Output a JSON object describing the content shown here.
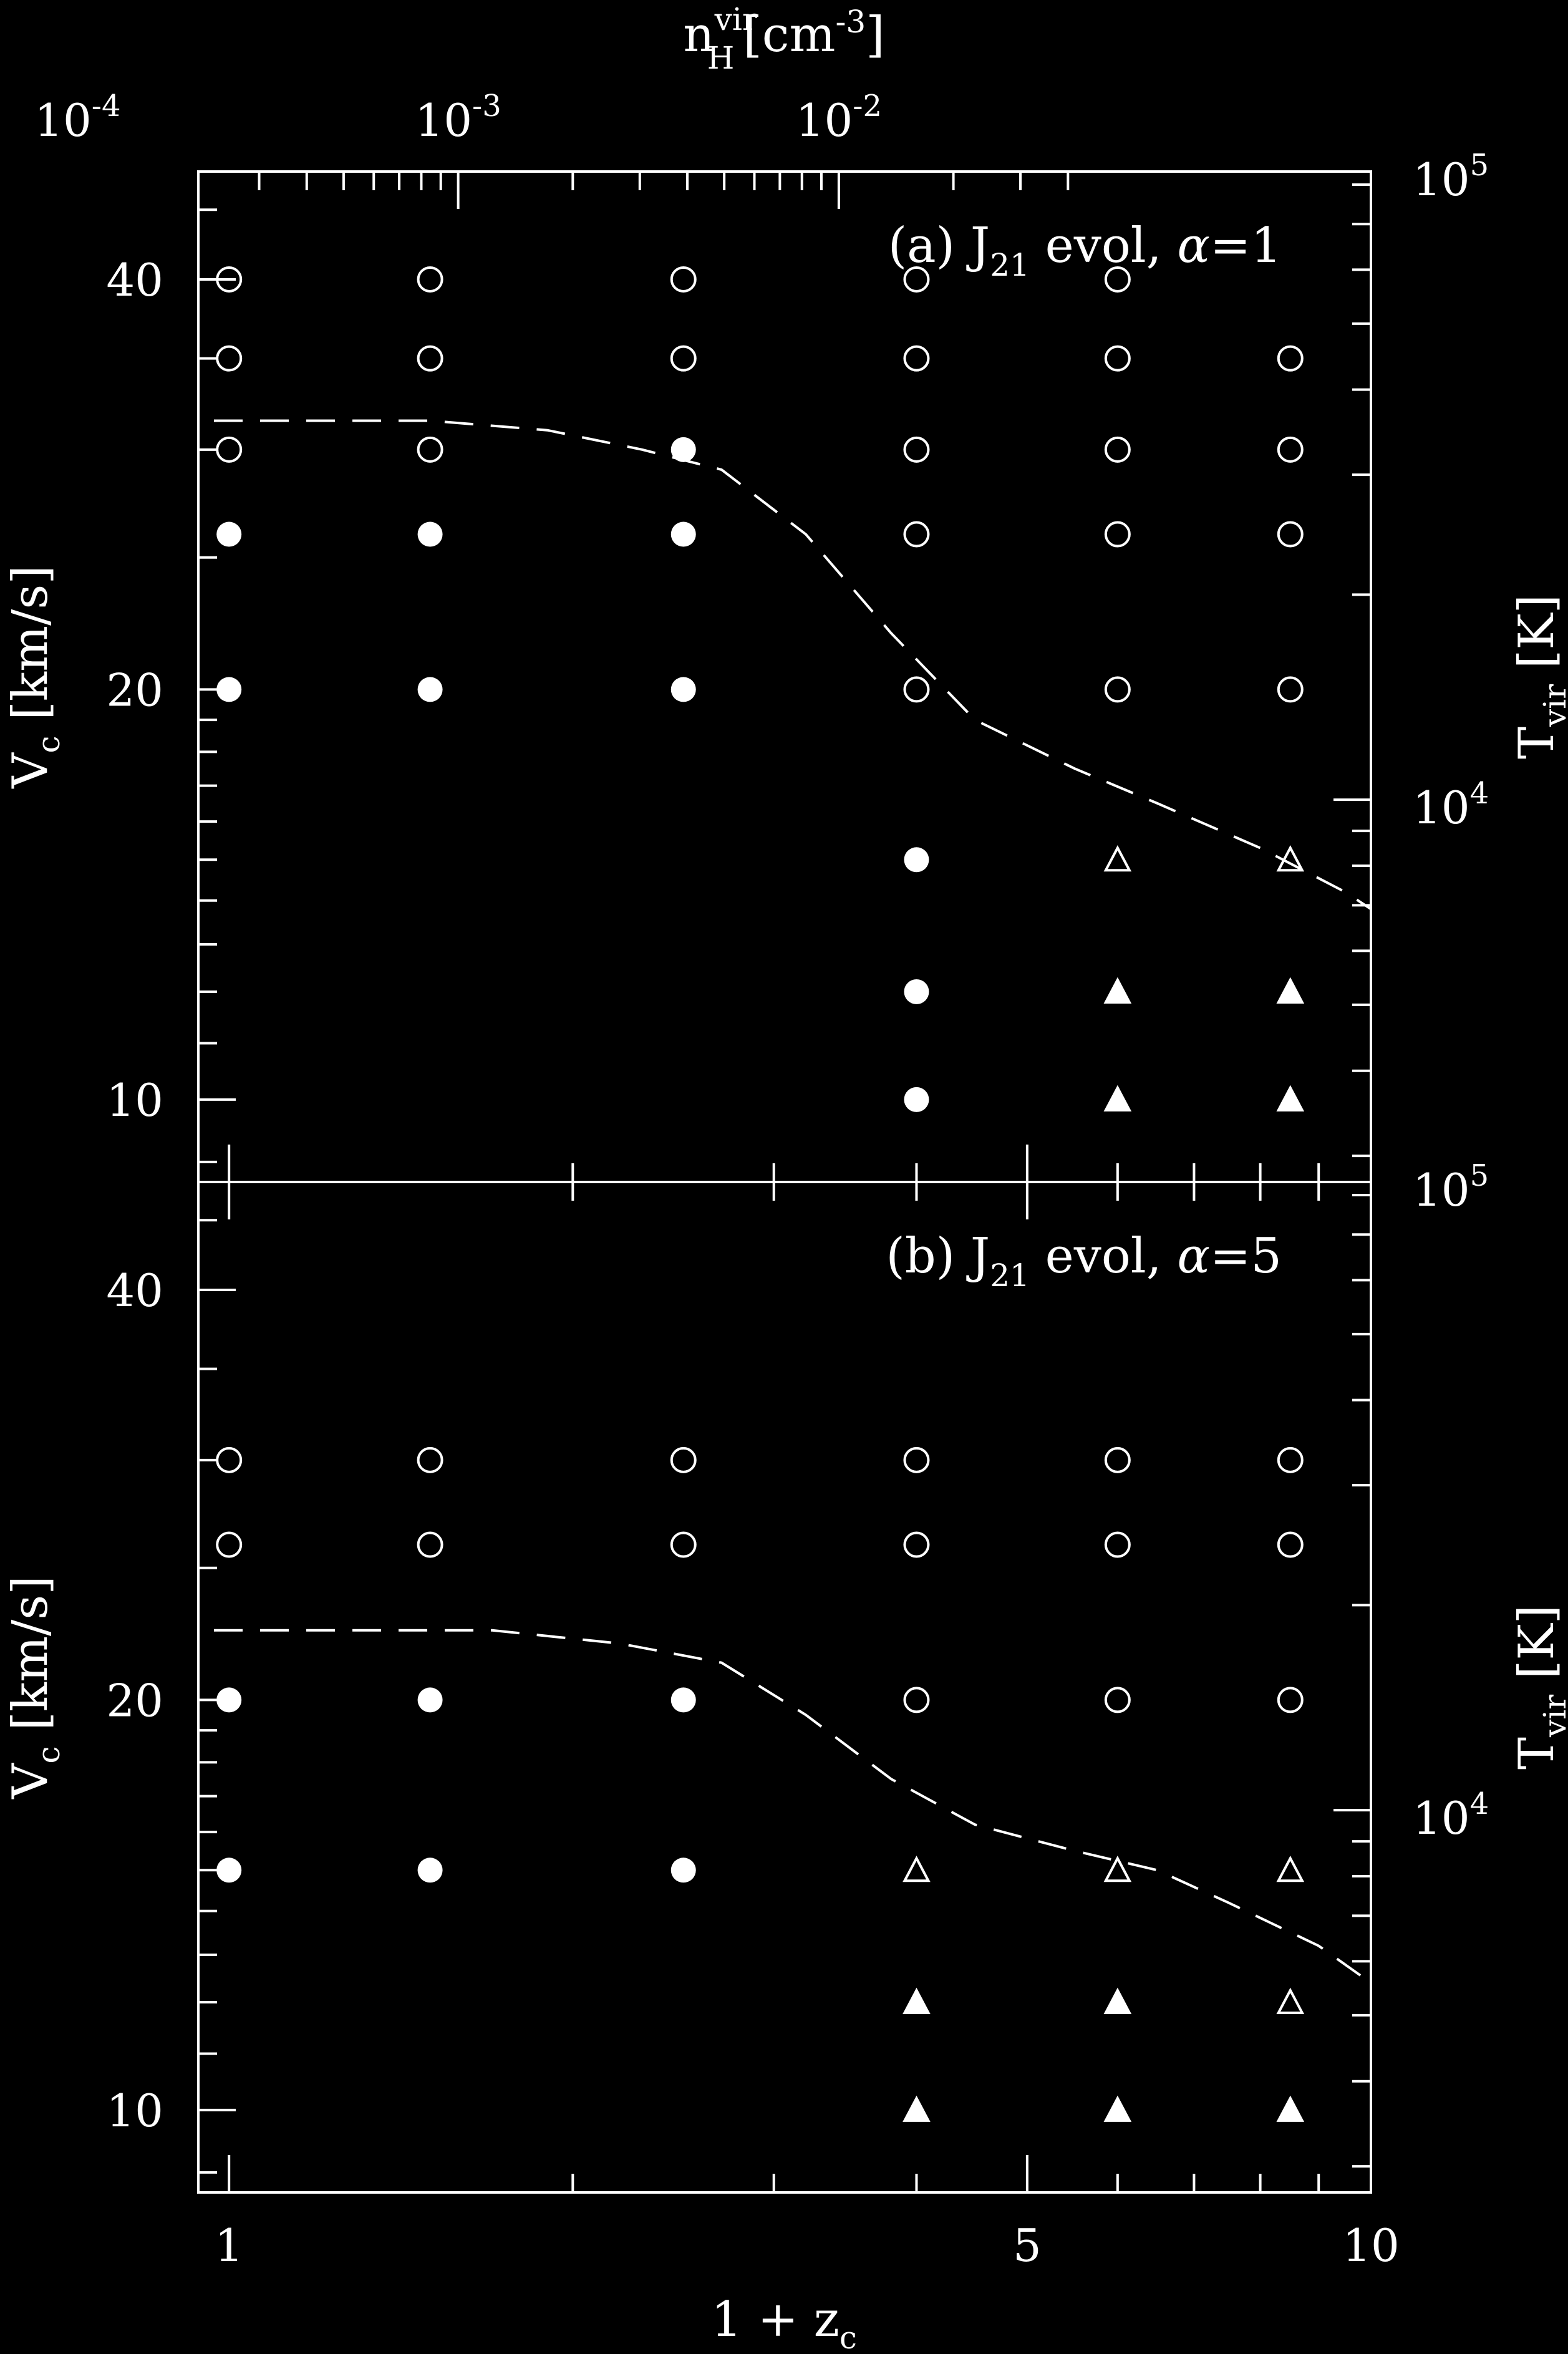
{
  "chart_data": [
    {
      "panel": "a",
      "type": "scatter",
      "annotation": {
        "prefix": "(a) J",
        "subscript": "21",
        "middle": " evol, ",
        "alpha": "α",
        "suffix": "=1"
      },
      "xlabel": {
        "main": "1 + z",
        "sub": "c"
      },
      "ylabel": {
        "main": "V",
        "sub": "c",
        "unit": " [km/s]"
      },
      "y2label": {
        "main": "T",
        "sub": "vir",
        "unit": " [K]"
      },
      "top_axis_label": {
        "main": "n",
        "sub": "H",
        "sup": "vir",
        "unit_a": "[cm",
        "unit_sup": "-3",
        "unit_b": "]"
      },
      "top_ticks": [
        {
          "base": "10",
          "exp": "-4",
          "value": 0.0001
        },
        {
          "base": "10",
          "exp": "-3",
          "value": 0.001
        },
        {
          "base": "10",
          "exp": "-2",
          "value": 0.01
        }
      ],
      "xscale": "log",
      "xlim": [
        0.94,
        10
      ],
      "yscale": "log",
      "ylim": [
        8.7,
        48
      ],
      "yticks": [
        "10",
        "20",
        "40"
      ],
      "y2ticks": [
        {
          "base": "10",
          "exp": "4"
        },
        {
          "base": "10",
          "exp": "5"
        }
      ],
      "series": [
        {
          "marker": "open-circle",
          "points": [
            [
              1,
              40
            ],
            [
              1.5,
              40
            ],
            [
              2.5,
              40
            ],
            [
              4,
              40
            ],
            [
              6,
              40
            ],
            [
              1,
              35
            ],
            [
              1.5,
              35
            ],
            [
              2.5,
              35
            ],
            [
              4,
              35
            ],
            [
              6,
              35
            ],
            [
              8.5,
              35
            ],
            [
              1,
              30
            ],
            [
              1.5,
              30
            ],
            [
              4,
              30
            ],
            [
              6,
              30
            ],
            [
              8.5,
              30
            ],
            [
              4,
              26
            ],
            [
              6,
              26
            ],
            [
              8.5,
              26
            ],
            [
              4,
              20
            ],
            [
              6,
              20
            ],
            [
              8.5,
              20
            ]
          ]
        },
        {
          "marker": "filled-circle",
          "points": [
            [
              2.5,
              30
            ],
            [
              1,
              26
            ],
            [
              1.5,
              26
            ],
            [
              2.5,
              26
            ],
            [
              1,
              20
            ],
            [
              1.5,
              20
            ],
            [
              2.5,
              20
            ],
            [
              4,
              15
            ],
            [
              4,
              12
            ],
            [
              4,
              10
            ]
          ]
        },
        {
          "marker": "open-triangle",
          "points": [
            [
              6,
              15
            ],
            [
              8.5,
              15
            ]
          ]
        },
        {
          "marker": "filled-triangle",
          "points": [
            [
              6,
              12
            ],
            [
              8.5,
              12
            ],
            [
              6,
              10
            ],
            [
              8.5,
              10
            ]
          ]
        }
      ],
      "dashed_curve": [
        [
          0.97,
          31.5
        ],
        [
          1.2,
          31.5
        ],
        [
          1.5,
          31.5
        ],
        [
          1.9,
          31
        ],
        [
          2.3,
          30
        ],
        [
          2.7,
          29
        ],
        [
          3.2,
          26
        ],
        [
          3.8,
          22
        ],
        [
          4.5,
          19
        ],
        [
          5.5,
          17.5
        ],
        [
          6.5,
          16.5
        ],
        [
          8,
          15.3
        ],
        [
          9.5,
          14.2
        ],
        [
          10,
          13.8
        ]
      ]
    },
    {
      "panel": "b",
      "type": "scatter",
      "annotation": {
        "prefix": "(b) J",
        "subscript": "21",
        "middle": " evol, ",
        "alpha": "α",
        "suffix": "=5"
      },
      "xlabel": {
        "main": "1 + z",
        "sub": "c"
      },
      "ylabel": {
        "main": "V",
        "sub": "c",
        "unit": " [km/s]"
      },
      "y2label": {
        "main": "T",
        "sub": "vir",
        "unit": " [K]"
      },
      "xscale": "log",
      "xlim": [
        0.94,
        10
      ],
      "xticks": [
        "1",
        "5",
        "10"
      ],
      "yscale": "log",
      "ylim": [
        8.7,
        48
      ],
      "yticks": [
        "10",
        "20",
        "40"
      ],
      "y2ticks": [
        {
          "base": "10",
          "exp": "4"
        },
        {
          "base": "10",
          "exp": "5"
        }
      ],
      "series": [
        {
          "marker": "open-circle",
          "points": [
            [
              1,
              30
            ],
            [
              1.5,
              30
            ],
            [
              2.5,
              30
            ],
            [
              4,
              30
            ],
            [
              6,
              30
            ],
            [
              8.5,
              30
            ],
            [
              1,
              26
            ],
            [
              1.5,
              26
            ],
            [
              2.5,
              26
            ],
            [
              4,
              26
            ],
            [
              6,
              26
            ],
            [
              8.5,
              26
            ],
            [
              4,
              20
            ],
            [
              6,
              20
            ],
            [
              8.5,
              20
            ]
          ]
        },
        {
          "marker": "filled-circle",
          "points": [
            [
              1,
              20
            ],
            [
              1.5,
              20
            ],
            [
              2.5,
              20
            ],
            [
              1,
              15
            ],
            [
              1.5,
              15
            ],
            [
              2.5,
              15
            ]
          ]
        },
        {
          "marker": "open-triangle",
          "points": [
            [
              4,
              15
            ],
            [
              6,
              15
            ],
            [
              8.5,
              15
            ],
            [
              8.5,
              12
            ]
          ]
        },
        {
          "marker": "filled-triangle",
          "points": [
            [
              4,
              12
            ],
            [
              6,
              12
            ],
            [
              4,
              10
            ],
            [
              6,
              10
            ],
            [
              8.5,
              10
            ]
          ]
        }
      ],
      "dashed_curve": [
        [
          0.97,
          22.5
        ],
        [
          1.3,
          22.5
        ],
        [
          1.7,
          22.5
        ],
        [
          2.2,
          22
        ],
        [
          2.7,
          21.3
        ],
        [
          3.2,
          19.5
        ],
        [
          3.8,
          17.5
        ],
        [
          4.5,
          16.2
        ],
        [
          5.5,
          15.5
        ],
        [
          6.5,
          15
        ],
        [
          7.5,
          14.2
        ],
        [
          9,
          13.2
        ],
        [
          10,
          12.4
        ]
      ]
    }
  ]
}
